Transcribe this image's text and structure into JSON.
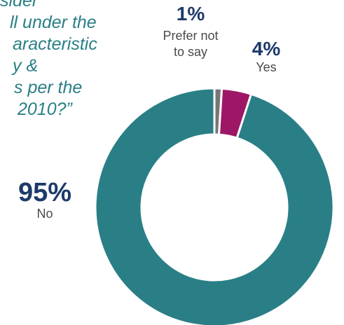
{
  "question": {
    "lines": [
      "sider",
      "ll under the",
      "aracteristic",
      "y &",
      "s per the",
      "2010?”"
    ]
  },
  "chart_data": {
    "type": "pie",
    "variant": "donut",
    "title": "",
    "slices": [
      {
        "label": "Prefer not to say",
        "value": 1,
        "display": "1%",
        "color": "#767676"
      },
      {
        "label": "Yes",
        "value": 4,
        "display": "4%",
        "color": "#9e1766"
      },
      {
        "label": "No",
        "value": 95,
        "display": "95%",
        "color": "#2a7f86"
      }
    ],
    "start": "top",
    "direction": "clockwise",
    "legend": "none"
  }
}
